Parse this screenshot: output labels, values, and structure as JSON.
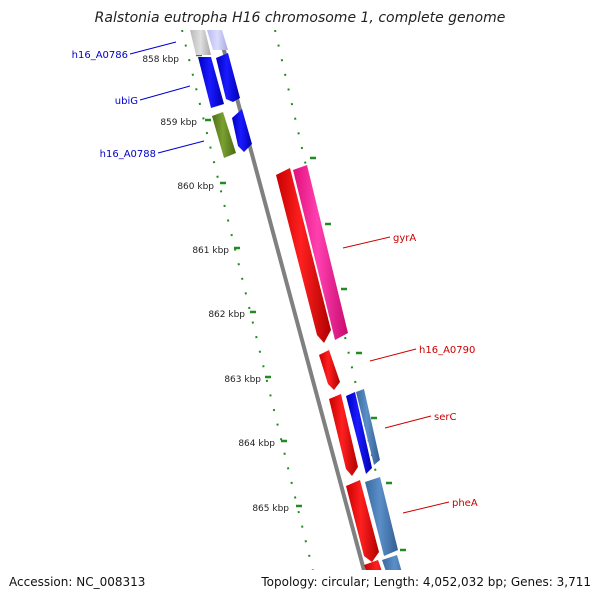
{
  "title": "Ralstonia eutropha H16 chromosome 1, complete genome",
  "footer": {
    "accession": "Accession: NC_008313",
    "topology": "Topology: circular; Length: 4,052,032 bp; Genes: 3,711"
  },
  "ticks": [
    {
      "label": "858 kbp"
    },
    {
      "label": "859 kbp"
    },
    {
      "label": "860 kbp"
    },
    {
      "label": "861 kbp"
    },
    {
      "label": "862 kbp"
    },
    {
      "label": "863 kbp"
    },
    {
      "label": "864 kbp"
    },
    {
      "label": "865 kbp"
    }
  ],
  "genes": [
    {
      "name": "h16_A0786",
      "color": "#0000cc"
    },
    {
      "name": "ubiG",
      "color": "#0000cc"
    },
    {
      "name": "h16_A0788",
      "color": "#0000cc"
    },
    {
      "name": "gyrA",
      "color": "#cc0000"
    },
    {
      "name": "h16_A0790",
      "color": "#cc0000"
    },
    {
      "name": "serC",
      "color": "#cc0000"
    },
    {
      "name": "pheA",
      "color": "#cc0000"
    }
  ],
  "colors": {
    "forward_strand_red": "#ff0000",
    "pink_feature": "#ff1aa0",
    "blue_feature": "#0000ff",
    "steel_blue_feature": "#4a7fb5",
    "olive_feature": "#6b8e23",
    "tick_green": "#228b22",
    "backbone_grey": "#808080"
  }
}
